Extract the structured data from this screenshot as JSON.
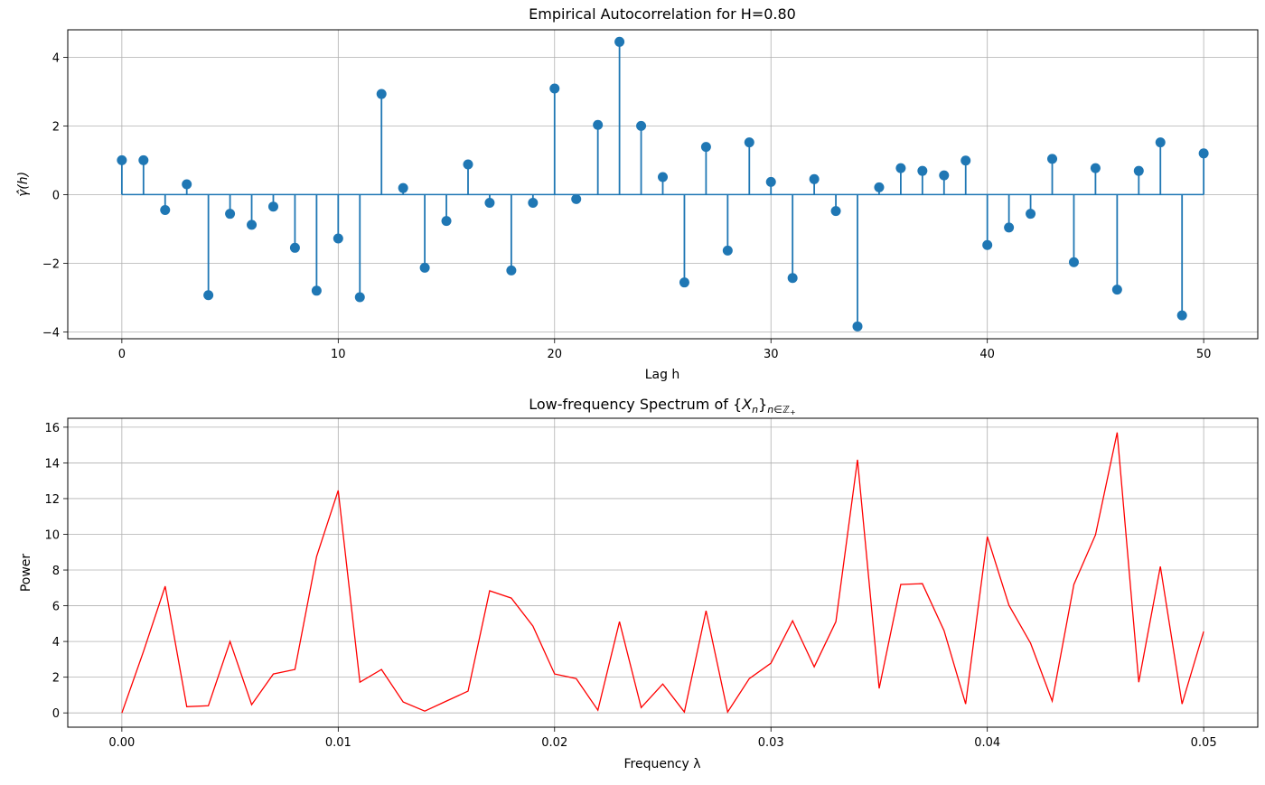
{
  "chart_data": [
    {
      "type": "stem",
      "title": "Empirical Autocorrelation for H=0.80",
      "xlabel": "Lag h",
      "ylabel": "γ̂(h)",
      "xlim": [
        -2.5,
        52.5
      ],
      "ylim": [
        -4.2,
        4.8
      ],
      "xticks": [
        0,
        10,
        20,
        30,
        40,
        50
      ],
      "xtick_labels": [
        "0",
        "10",
        "20",
        "30",
        "40",
        "50"
      ],
      "yticks": [
        -4,
        -2,
        0,
        2,
        4
      ],
      "ytick_labels": [
        "−4",
        "−2",
        "0",
        "2",
        "4"
      ],
      "grid": true,
      "color": "#1f77b4",
      "x": [
        0,
        1,
        2,
        3,
        4,
        5,
        6,
        7,
        8,
        9,
        10,
        11,
        12,
        13,
        14,
        15,
        16,
        17,
        18,
        19,
        20,
        21,
        22,
        23,
        24,
        25,
        26,
        27,
        28,
        29,
        30,
        31,
        32,
        33,
        34,
        35,
        36,
        37,
        38,
        39,
        40,
        41,
        42,
        43,
        44,
        45,
        46,
        47,
        48,
        49,
        50
      ],
      "values": [
        1.0,
        1.0,
        -0.45,
        0.3,
        -2.93,
        -0.56,
        -0.88,
        -0.35,
        -1.55,
        -2.8,
        -1.28,
        -2.99,
        2.93,
        0.19,
        -2.13,
        -0.77,
        0.88,
        -0.24,
        -2.21,
        -0.24,
        3.09,
        -0.13,
        2.03,
        4.45,
        2.0,
        0.51,
        -2.56,
        1.39,
        -1.63,
        1.52,
        0.37,
        -2.43,
        0.45,
        -0.48,
        -3.84,
        0.21,
        0.77,
        0.69,
        0.56,
        0.99,
        -1.47,
        -0.96,
        -0.56,
        1.04,
        -1.97,
        0.77,
        -2.77,
        0.69,
        1.52,
        -3.52,
        1.2
      ]
    },
    {
      "type": "line",
      "title": "Low-frequency Spectrum of {X_n}_{n∈ℤ+}",
      "title_parts": {
        "pre": "Low-frequency Spectrum of {",
        "var": "X",
        "sub": "n",
        "post": "}",
        "set_sub": "n∈ℤ",
        "set_plus": "+"
      },
      "xlabel": "Frequency λ",
      "ylabel": "Power",
      "xlim": [
        -0.0025,
        0.0525
      ],
      "ylim": [
        -0.8,
        16.5
      ],
      "xticks": [
        0,
        0.01,
        0.02,
        0.03,
        0.04,
        0.05
      ],
      "xtick_labels": [
        "0.00",
        "0.01",
        "0.02",
        "0.03",
        "0.04",
        "0.05"
      ],
      "yticks": [
        0,
        2,
        4,
        6,
        8,
        10,
        12,
        14,
        16
      ],
      "ytick_labels": [
        "0",
        "2",
        "4",
        "6",
        "8",
        "10",
        "12",
        "14",
        "16"
      ],
      "grid": true,
      "color": "#ff0000",
      "x": [
        0,
        0.001,
        0.002,
        0.003,
        0.004,
        0.005,
        0.006,
        0.007,
        0.008,
        0.009,
        0.01,
        0.011,
        0.012,
        0.013,
        0.014,
        0.015,
        0.016,
        0.017,
        0.018,
        0.019,
        0.02,
        0.021,
        0.022,
        0.023,
        0.024,
        0.025,
        0.026,
        0.027,
        0.028,
        0.029,
        0.03,
        0.031,
        0.032,
        0.033,
        0.034,
        0.035,
        0.036,
        0.037,
        0.038,
        0.039,
        0.04,
        0.041,
        0.042,
        0.043,
        0.044,
        0.045,
        0.046,
        0.047,
        0.048,
        0.049,
        0.05
      ],
      "values": [
        0,
        3.44,
        7.09,
        0.35,
        0.4,
        4.0,
        0.46,
        2.18,
        2.43,
        8.76,
        12.46,
        1.72,
        2.43,
        0.61,
        0.1,
        0.66,
        1.22,
        6.84,
        6.43,
        4.86,
        2.18,
        1.92,
        0.15,
        5.11,
        0.3,
        1.62,
        0.05,
        5.72,
        0.05,
        1.92,
        2.78,
        5.16,
        2.58,
        5.11,
        14.18,
        1.37,
        7.19,
        7.24,
        4.61,
        0.5,
        9.87,
        6.03,
        3.9,
        0.66,
        7.19,
        9.97,
        15.7,
        1.72,
        8.2,
        0.5,
        4.56
      ]
    }
  ]
}
